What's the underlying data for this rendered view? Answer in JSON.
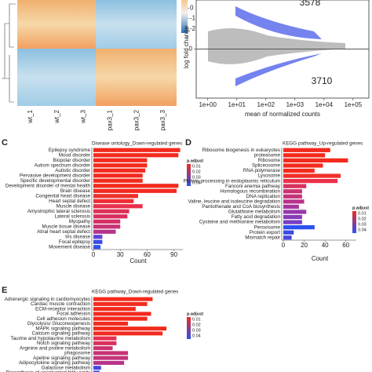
{
  "chart_data": [
    {
      "type": "heatmap",
      "categories": [
        "wt_1",
        "wt_2",
        "wt_3",
        "pax3_1",
        "pax3_2",
        "pax3_3"
      ],
      "zlim": [
        -2.4,
        0.8
      ],
      "zticks": [
        0,
        -1,
        -2
      ]
    },
    {
      "type": "scatter",
      "xlabel": "mean of normalized counts",
      "ylabel": "log fold change",
      "log_x": true,
      "xlim": [
        0.4,
        350000
      ],
      "xticks": [
        {
          "value": 1,
          "label": "1e+00"
        },
        {
          "value": 10,
          "label": "1e+01"
        },
        {
          "value": 100,
          "label": "1e+02"
        },
        {
          "value": 1000,
          "label": "1e+03"
        },
        {
          "value": 10000,
          "label": "1e+04"
        },
        {
          "value": 100000,
          "label": "1e+05"
        }
      ],
      "ylim": [
        -5,
        5
      ],
      "yticks": [
        0
      ],
      "annotations": [
        "3578",
        "3710"
      ]
    },
    {
      "type": "hbar",
      "label": "C",
      "title": "Disease ontology_Down-regulated genes",
      "xlabel": "Count",
      "legend_title": "p.adjust",
      "legend_ticks": [
        0.01,
        0.02,
        0.03,
        0.04
      ],
      "categories": [
        "Epilepsy syndrome",
        "Mood disorder",
        "Biopolar disorder",
        "Autism spectrum disorder",
        "Autistic disorder",
        "Pervasive development disorder",
        "Specific developmental disorder",
        "Development disorder of mental health",
        "Brain disease",
        "Congenital heart disease",
        "Heart septal defect",
        "Muscle disease",
        "Amyotrophic lateral sclerosis",
        "Lateral sclerosis",
        "Myopathy",
        "Muscle tissue disease",
        "Atrial heart septal defect",
        "Iris disease",
        "Focal epilepsy",
        "Movement disease"
      ],
      "values": [
        97,
        95,
        60,
        60,
        58,
        55,
        55,
        95,
        93,
        50,
        45,
        55,
        40,
        38,
        30,
        30,
        25,
        10,
        10,
        8
      ],
      "colors": [
        "#f32a1e",
        "#f32a1e",
        "#f32a1e",
        "#f32a1e",
        "#f32a1e",
        "#f32a1e",
        "#f32a1e",
        "#f32a1e",
        "#f32a1e",
        "#f0302a",
        "#ee2d36",
        "#e8304a",
        "#de3055",
        "#d8305e",
        "#d42f64",
        "#c83274",
        "#b8338a",
        "#5d43d6",
        "#3c49e8",
        "#2d50f0"
      ],
      "xlim": [
        0,
        100
      ],
      "xticks": [
        0,
        30,
        60,
        90
      ]
    },
    {
      "type": "hbar",
      "label": "D",
      "title": "KEGG pathway_Up-regulated genes",
      "xlabel": "Count",
      "legend_title": "p.adjust",
      "legend_ticks": [
        0.01,
        0.02,
        0.03,
        0.04
      ],
      "categories": [
        "Ribosome biogenesis in eukaryotes",
        "proteasome",
        "Ribosome",
        "Spliceosome",
        "RNA polymerase",
        "Lysosome",
        "Protein processing in endoplasmic reticulum",
        "Fanconi anemia pathway",
        "Homologous recombination",
        "DNA replication",
        "Valine, leucine and isoleucine degradation",
        "Pantothenate and CoA biosynthesis",
        "Glutathione metabolism",
        "Fatty acid degradation",
        "Cysteine and methionine metabolism",
        "Peroxisome",
        "Protein export",
        "Mismatch repair"
      ],
      "values": [
        45,
        40,
        62,
        38,
        30,
        55,
        52,
        22,
        18,
        18,
        20,
        15,
        22,
        18,
        18,
        30,
        10,
        8
      ],
      "colors": [
        "#f32a1e",
        "#f32a1e",
        "#f32a1e",
        "#f32a1e",
        "#f32a1e",
        "#f0302a",
        "#ea304a",
        "#d8305e",
        "#cc3270",
        "#c43478",
        "#b8338a",
        "#a8369a",
        "#9838aa",
        "#883bb8",
        "#783ec4",
        "#2d50f0",
        "#3a4ae8",
        "#4a46e0"
      ],
      "xlim": [
        0,
        70
      ],
      "xticks": [
        0,
        20,
        40,
        60
      ]
    },
    {
      "type": "hbar",
      "label": "E",
      "title": "KEGG pathway_Down-regulated genes",
      "legend_title": "p.adjust",
      "legend_ticks": [
        0.01,
        0.02,
        0.03,
        0.04
      ],
      "categories": [
        "Adrenergic signaling in cardiomyocytes",
        "Cardiac muscle contraction",
        "ECM-receptor interaction",
        "Focal adhesion",
        "Cell adhesion molecules",
        "Glycolysis/ Gluconeogenesis",
        "MAPK signaling pathway",
        "Calcium signaling pathway",
        "Taurine and hypotaurine metabolism",
        "Notch signaling pathway",
        "Arginine and proline metabolism",
        "phagosome",
        "Apeline signaling pathway",
        "Adipocytokine signaling pathway",
        "Galactose metabolism",
        "Biosynthesis of unsaturated fatty acids"
      ],
      "values": [
        77,
        70,
        55,
        75,
        70,
        45,
        95,
        90,
        30,
        30,
        25,
        45,
        45,
        40,
        10,
        8
      ],
      "colors": [
        "#f32a1e",
        "#f32a1e",
        "#f32a1e",
        "#f32a1e",
        "#f32a1e",
        "#f32a1e",
        "#f32a1e",
        "#f32a1e",
        "#e83050",
        "#d8305e",
        "#cc3270",
        "#c83274",
        "#c43478",
        "#b8338a",
        "#4a46e0",
        "#2d50f0"
      ],
      "xlim": [
        0,
        100
      ]
    }
  ]
}
